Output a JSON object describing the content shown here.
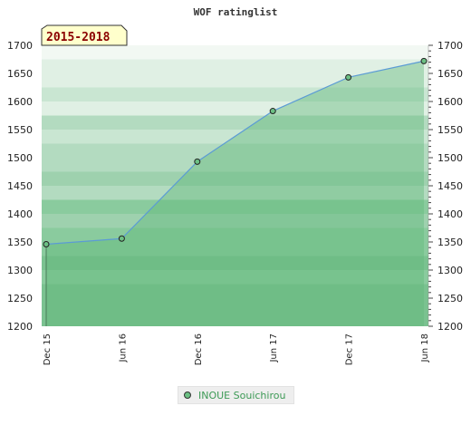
{
  "chart_data": {
    "type": "area",
    "title": "WOF ratinglist",
    "period_label": "2015-2018",
    "x": [
      "Dec 15",
      "Jun 16",
      "Dec 16",
      "Jun 17",
      "Dec 17",
      "Jun 18"
    ],
    "series": [
      {
        "name": "INOUE Souichirou",
        "values": [
          1346,
          1356,
          1493,
          1583,
          1643,
          1672
        ]
      }
    ],
    "ylim": [
      1200,
      1700
    ],
    "yticks": [
      1200,
      1250,
      1300,
      1350,
      1400,
      1450,
      1500,
      1550,
      1600,
      1650,
      1700
    ],
    "xlabel": "",
    "ylabel": "",
    "grid": true,
    "legend_position": "bottom"
  },
  "colors": {
    "line": "#5b9bd5",
    "marker": "#6cc084",
    "band_palette": [
      "#f2f8f3",
      "#e0f0e4",
      "#c9e6d2",
      "#b3dbc0",
      "#9ed1ae",
      "#8acb9e",
      "#7ac290"
    ]
  }
}
